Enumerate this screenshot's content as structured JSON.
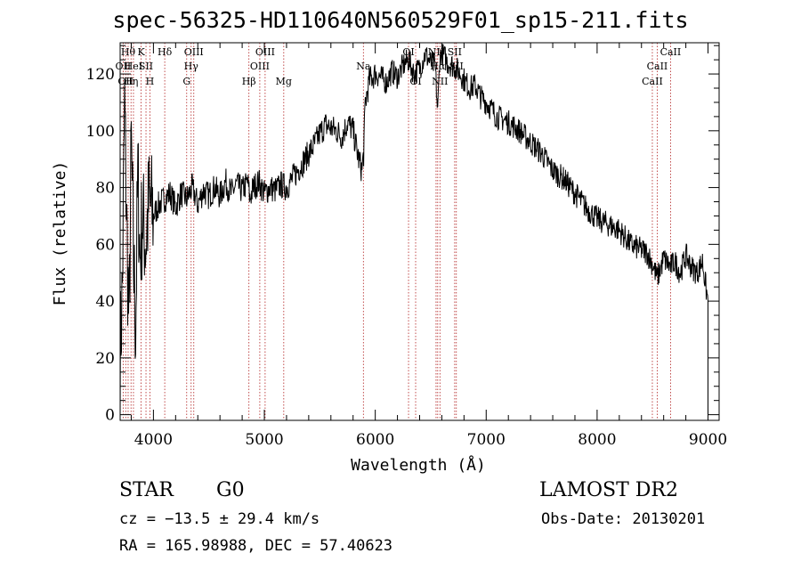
{
  "header": {
    "title": "spec-56325-HD110640N560529F01_sp15-211.fits"
  },
  "info": {
    "object_type": "STAR",
    "subclass": "G0",
    "survey": "LAMOST DR2",
    "cz_text": "cz = −13.5 ± 29.4 km/s",
    "obs_date_text": "Obs-Date: 20130201",
    "coords_text": "RA = 165.98988, DEC =  57.40623"
  },
  "chart_data": {
    "type": "line",
    "title": "spec-56325-HD110640N560529F01_sp15-211.fits",
    "xlabel": "Wavelength (Å)",
    "ylabel": "Flux (relative)",
    "xlim": [
      3700,
      9100
    ],
    "ylim": [
      -2,
      131
    ],
    "x_ticks": [
      4000,
      5000,
      6000,
      7000,
      8000,
      9000
    ],
    "y_ticks": [
      0,
      20,
      40,
      60,
      80,
      100,
      120
    ],
    "grid": false,
    "line_color": "#000000",
    "marker_color": "#b22222",
    "series": [
      {
        "x": [
          3700,
          3720,
          3740,
          3760,
          3780,
          3800,
          3820,
          3840,
          3860,
          3880,
          3900,
          3930,
          3960,
          4000,
          4050,
          4100,
          4150,
          4200,
          4250,
          4300,
          4350,
          4400,
          4450,
          4500,
          4550,
          4600,
          4650,
          4700,
          4750,
          4800,
          4850,
          4870,
          4900,
          4950,
          5000,
          5050,
          5100,
          5150,
          5200,
          5250,
          5300,
          5350,
          5400,
          5450,
          5500,
          5550,
          5600,
          5650,
          5700,
          5750,
          5800,
          5850,
          5880,
          5895,
          5910,
          5950,
          6000,
          6050,
          6100,
          6150,
          6200,
          6250,
          6300,
          6350,
          6400,
          6450,
          6500,
          6540,
          6563,
          6580,
          6600,
          6650,
          6700,
          6750,
          6800,
          6850,
          6900,
          6950,
          7000,
          7100,
          7200,
          7300,
          7400,
          7500,
          7600,
          7700,
          7800,
          7900,
          8000,
          8100,
          8200,
          8300,
          8400,
          8450,
          8500,
          8542,
          8600,
          8662,
          8700,
          8750,
          8800,
          8850,
          8900,
          8950,
          8980,
          9000
        ],
        "y": [
          20,
          45,
          110,
          65,
          30,
          95,
          55,
          30,
          85,
          55,
          70,
          60,
          75,
          70,
          74,
          76,
          78,
          73,
          78,
          76,
          80,
          74,
          79,
          77,
          80,
          77,
          82,
          78,
          81,
          79,
          82,
          76,
          80,
          82,
          78,
          80,
          79,
          81,
          80,
          83,
          86,
          89,
          92,
          95,
          99,
          102,
          101,
          100,
          98,
          103,
          100,
          90,
          86,
          92,
          110,
          118,
          120,
          119,
          117,
          121,
          119,
          123,
          125,
          120,
          122,
          127,
          124,
          123,
          106,
          125,
          128,
          124,
          123,
          121,
          118,
          115,
          116,
          112,
          110,
          105,
          103,
          100,
          96,
          92,
          86,
          83,
          78,
          73,
          69,
          67,
          65,
          60,
          58,
          57,
          53,
          48,
          55,
          52,
          54,
          50,
          56,
          52,
          50,
          54,
          45,
          40
        ]
      }
    ],
    "line_markers": [
      {
        "wavelength": 3727,
        "label": "OII",
        "tier": 2
      },
      {
        "wavelength": 3750,
        "label": "OII",
        "tier": 3
      },
      {
        "wavelength": 3772,
        "label": "Hθ",
        "tier": 1
      },
      {
        "wavelength": 3798,
        "label": "Hη",
        "tier": 3
      },
      {
        "wavelength": 3820,
        "label": "HeI",
        "tier": 2
      },
      {
        "wavelength": 3889,
        "label": "K",
        "tier": 1
      },
      {
        "wavelength": 3933,
        "label": "SII",
        "tier": 2
      },
      {
        "wavelength": 3968,
        "label": "H",
        "tier": 3
      },
      {
        "wavelength": 4102,
        "label": "Hδ",
        "tier": 1
      },
      {
        "wavelength": 4300,
        "label": "G",
        "tier": 3
      },
      {
        "wavelength": 4340,
        "label": "Hγ",
        "tier": 2
      },
      {
        "wavelength": 4364,
        "label": "OIII",
        "tier": 1
      },
      {
        "wavelength": 4861,
        "label": "Hβ",
        "tier": 3
      },
      {
        "wavelength": 4959,
        "label": "OIII",
        "tier": 2
      },
      {
        "wavelength": 5007,
        "label": "OIII",
        "tier": 1
      },
      {
        "wavelength": 5175,
        "label": "Mg",
        "tier": 3
      },
      {
        "wavelength": 5893,
        "label": "Na",
        "tier": 2
      },
      {
        "wavelength": 6300,
        "label": "OI",
        "tier": 1
      },
      {
        "wavelength": 6364,
        "label": "OI",
        "tier": 3
      },
      {
        "wavelength": 6548,
        "label": "NII",
        "tier": 1
      },
      {
        "wavelength": 6563,
        "label": "Hα",
        "tier": 2
      },
      {
        "wavelength": 6583,
        "label": "NII",
        "tier": 3
      },
      {
        "wavelength": 6716,
        "label": "SII",
        "tier": 1
      },
      {
        "wavelength": 6731,
        "label": "SII",
        "tier": 2
      },
      {
        "wavelength": 8498,
        "label": "CaII",
        "tier": 3
      },
      {
        "wavelength": 8542,
        "label": "CaII",
        "tier": 2
      },
      {
        "wavelength": 8662,
        "label": "CaII",
        "tier": 1
      }
    ]
  }
}
